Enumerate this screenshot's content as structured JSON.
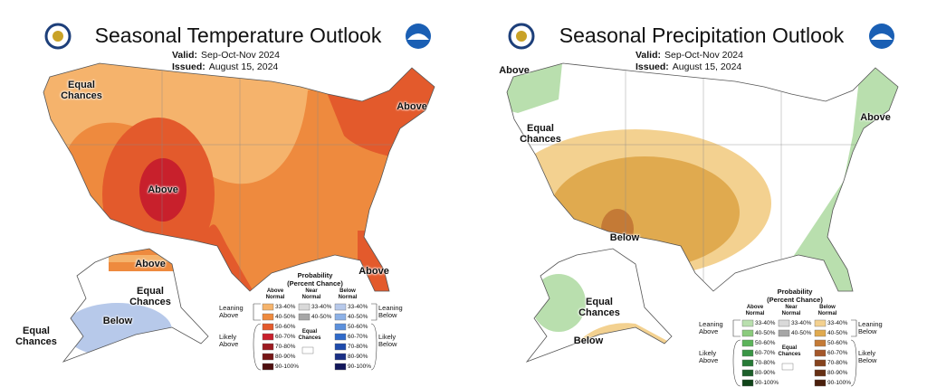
{
  "maps": [
    {
      "title": "Seasonal Temperature Outlook",
      "valid_label": "Valid:",
      "valid": "Sep-Oct-Nov 2024",
      "issued_label": "Issued:",
      "issued": "August 15, 2024",
      "region_labels": [
        "Equal Chances",
        "Above",
        "Above",
        "Above",
        "Above",
        "Equal Chances",
        "Below",
        "Equal Chances"
      ],
      "legend": {
        "title": "Probability",
        "subtitle": "(Percent Chance)",
        "columns": [
          "Above Normal",
          "Near Normal",
          "Below Normal"
        ],
        "above_ranges": [
          "33-40%",
          "40-50%",
          "50-60%",
          "60-70%",
          "70-80%",
          "80-90%",
          "90-100%"
        ],
        "near_ranges": [
          "33-40%",
          "40-50%"
        ],
        "below_ranges": [
          "33-40%",
          "40-50%",
          "50-60%",
          "60-70%",
          "70-80%",
          "80-90%",
          "90-100%"
        ],
        "above_colors": [
          "#f5b36c",
          "#ee8a3e",
          "#e35a2c",
          "#c8202c",
          "#9c1b21",
          "#761717",
          "#4e0f0f"
        ],
        "near_colors": [
          "#d9d9d9",
          "#a6a6a6"
        ],
        "below_colors": [
          "#b7c9ea",
          "#8db1e6",
          "#5c90db",
          "#306ac9",
          "#1f4bab",
          "#1a2f85",
          "#12175a"
        ],
        "leaning_left": "Leaning Above",
        "likely_left": "Likely Above",
        "leaning_right": "Leaning Below",
        "likely_right": "Likely Below",
        "equal": "Equal Chances"
      }
    },
    {
      "title": "Seasonal Precipitation Outlook",
      "valid_label": "Valid:",
      "valid": "Sep-Oct-Nov 2024",
      "issued_label": "Issued:",
      "issued": "August 15, 2024",
      "region_labels": [
        "Above",
        "Equal Chances",
        "Above",
        "Below",
        "Equal Chances",
        "Below"
      ],
      "legend": {
        "title": "Probability",
        "subtitle": "(Percent Chance)",
        "columns": [
          "Above Normal",
          "Near Normal",
          "Below Normal"
        ],
        "above_ranges": [
          "33-40%",
          "40-50%",
          "50-60%",
          "60-70%",
          "70-80%",
          "80-90%",
          "90-100%"
        ],
        "near_ranges": [
          "33-40%",
          "40-50%"
        ],
        "below_ranges": [
          "33-40%",
          "40-50%",
          "50-60%",
          "60-70%",
          "70-80%",
          "80-90%",
          "90-100%"
        ],
        "above_colors": [
          "#b9dfae",
          "#8bcb7d",
          "#5cb35a",
          "#3a9545",
          "#277a36",
          "#1c5e2a",
          "#104419"
        ],
        "near_colors": [
          "#d9d9d9",
          "#a6a6a6"
        ],
        "below_colors": [
          "#f3d190",
          "#e0aa4f",
          "#c47a36",
          "#a4572a",
          "#86431e",
          "#663014",
          "#4a1f0c"
        ],
        "leaning_left": "Leaning Above",
        "likely_left": "Likely Above",
        "leaning_right": "Leaning Below",
        "likely_right": "Likely Below",
        "equal": "Equal Chances"
      }
    }
  ]
}
